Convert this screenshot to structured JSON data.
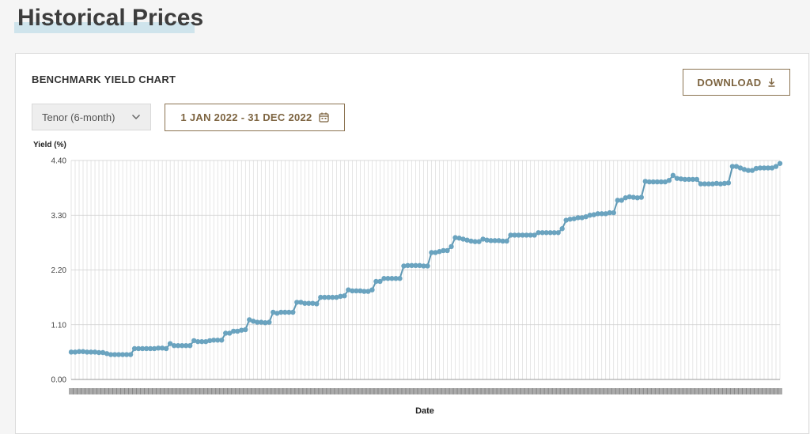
{
  "page": {
    "title": "Historical Prices"
  },
  "card": {
    "heading": "BENCHMARK YIELD CHART",
    "download_label": "DOWNLOAD",
    "tenor_value": "Tenor (6-month)",
    "date_range": "1 JAN 2022 - 31 DEC 2022"
  },
  "icons": {
    "download": "download-icon",
    "dropdown": "chevron-down-icon",
    "calendar": "calendar-icon"
  },
  "colors": {
    "accent": "#8b7351",
    "line": "#5e98b4",
    "marker": "#6aa3bf",
    "grid": "#d5d5d5",
    "title_highlight": "#cfe4ec"
  },
  "chart_data": {
    "type": "line",
    "ylabel": "Yield (%)",
    "xlabel": "Date",
    "ylim": [
      0,
      4.4
    ],
    "yticks": [
      "0.00",
      "1.10",
      "2.20",
      "3.30",
      "4.40"
    ],
    "grid": true,
    "series": [
      {
        "values": [
          0.55,
          0.55,
          0.56,
          0.56,
          0.55,
          0.55,
          0.55,
          0.54,
          0.54,
          0.52,
          0.5,
          0.5,
          0.5,
          0.5,
          0.5,
          0.5,
          0.62,
          0.62,
          0.62,
          0.62,
          0.62,
          0.62,
          0.63,
          0.63,
          0.62,
          0.72,
          0.68,
          0.68,
          0.68,
          0.68,
          0.68,
          0.78,
          0.76,
          0.76,
          0.76,
          0.78,
          0.79,
          0.79,
          0.79,
          0.93,
          0.93,
          0.97,
          0.97,
          0.99,
          1.0,
          1.2,
          1.17,
          1.15,
          1.15,
          1.14,
          1.15,
          1.35,
          1.33,
          1.35,
          1.35,
          1.35,
          1.35,
          1.55,
          1.55,
          1.53,
          1.53,
          1.53,
          1.52,
          1.65,
          1.65,
          1.65,
          1.65,
          1.65,
          1.67,
          1.68,
          1.8,
          1.78,
          1.78,
          1.78,
          1.77,
          1.77,
          1.8,
          1.97,
          1.97,
          2.03,
          2.03,
          2.03,
          2.03,
          2.03,
          2.28,
          2.29,
          2.29,
          2.29,
          2.29,
          2.28,
          2.28,
          2.55,
          2.55,
          2.57,
          2.59,
          2.59,
          2.67,
          2.85,
          2.84,
          2.82,
          2.8,
          2.78,
          2.77,
          2.77,
          2.82,
          2.8,
          2.79,
          2.79,
          2.79,
          2.78,
          2.78,
          2.9,
          2.9,
          2.9,
          2.9,
          2.9,
          2.9,
          2.9,
          2.95,
          2.95,
          2.95,
          2.95,
          2.95,
          2.95,
          3.03,
          3.2,
          3.22,
          3.23,
          3.25,
          3.25,
          3.27,
          3.3,
          3.31,
          3.33,
          3.33,
          3.33,
          3.35,
          3.35,
          3.6,
          3.6,
          3.65,
          3.67,
          3.66,
          3.65,
          3.66,
          3.98,
          3.97,
          3.97,
          3.97,
          3.97,
          3.97,
          4.0,
          4.1,
          4.04,
          4.03,
          4.02,
          4.02,
          4.02,
          4.02,
          3.93,
          3.93,
          3.93,
          3.93,
          3.94,
          3.93,
          3.94,
          3.95,
          4.28,
          4.28,
          4.25,
          4.22,
          4.2,
          4.2,
          4.24,
          4.25,
          4.25,
          4.25,
          4.25,
          4.28,
          4.34
        ]
      }
    ]
  }
}
